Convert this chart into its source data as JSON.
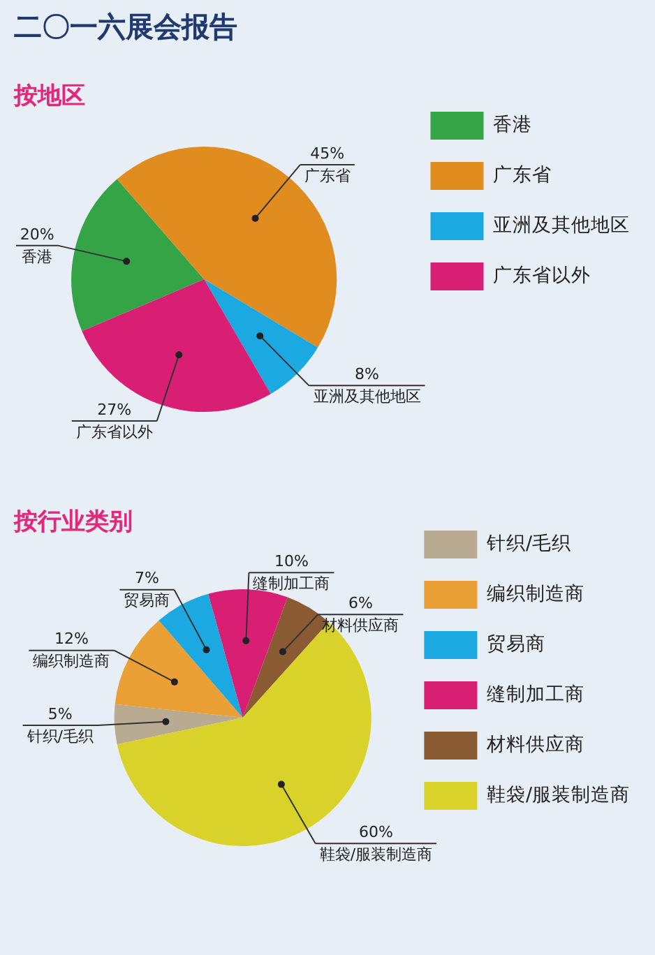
{
  "chart_data": [
    {
      "type": "pie",
      "title": "二〇一六展会报告",
      "subtitle": "按地区",
      "categories": [
        "香港",
        "广东省",
        "亚洲及其他地区",
        "广东省以外"
      ],
      "values": [
        20,
        45,
        8,
        27
      ],
      "colors": [
        "#34a447",
        "#e08c1e",
        "#1ca8e0",
        "#d81f74"
      ],
      "value_labels": [
        "20%",
        "45%",
        "8%",
        "27%"
      ],
      "legend": "top right"
    },
    {
      "type": "pie",
      "subtitle": "按行业类别",
      "categories": [
        "针织/毛织",
        "编织制造商",
        "贸易商",
        "缝制加工商",
        "材料供应商",
        "鞋袋/服装制造商"
      ],
      "values": [
        5,
        12,
        7,
        10,
        6,
        60
      ],
      "colors": [
        "#b9aa92",
        "#eaa035",
        "#1ca8e0",
        "#d81f74",
        "#8a5a32",
        "#d8d22a"
      ],
      "value_labels": [
        "5%",
        "12%",
        "7%",
        "10%",
        "6%",
        "60%"
      ],
      "legend": "top right"
    }
  ]
}
